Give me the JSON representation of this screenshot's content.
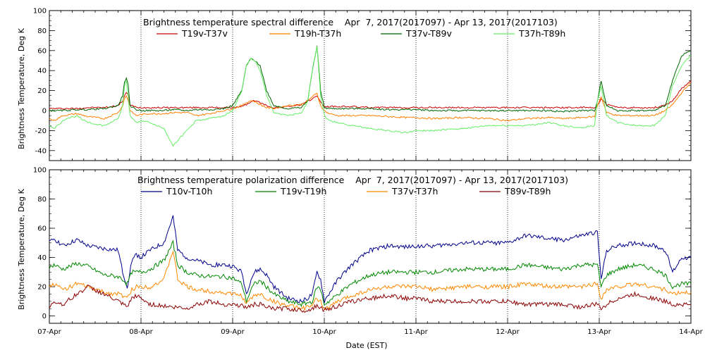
{
  "chart_data": [
    {
      "type": "line",
      "title": "Brightness temperature spectral difference    Apr  7, 2017(2017097) - Apr 13, 2017(2017103)",
      "ylabel": "Brightness Temperature, Deg K",
      "xlabel": "",
      "ylim": [
        -50,
        100
      ],
      "yticks": [
        -40,
        -20,
        0,
        20,
        40,
        60,
        80,
        100
      ],
      "xlim": [
        "07-Apr",
        "14-Apr"
      ],
      "xticks": [],
      "grid": "vertical dotted at day boundaries",
      "legend_position": "top",
      "x_days": [
        0,
        0.05,
        0.15,
        0.3,
        0.42,
        0.6,
        0.75,
        0.8,
        0.82,
        0.84,
        0.86,
        0.88,
        0.95,
        1.0,
        1.1,
        1.25,
        1.35,
        1.5,
        1.6,
        1.75,
        1.9,
        2.0,
        2.1,
        2.15,
        2.2,
        2.24,
        2.3,
        2.37,
        2.45,
        2.6,
        2.75,
        2.82,
        2.87,
        2.92,
        2.96,
        3.0,
        3.05,
        3.15,
        3.3,
        3.5,
        3.7,
        3.9,
        4.0,
        4.2,
        4.5,
        4.8,
        5.0,
        5.2,
        5.45,
        5.6,
        5.8,
        5.95,
        5.98,
        6.02,
        6.08,
        6.2,
        6.4,
        6.6,
        6.72,
        6.8,
        6.9,
        7.0
      ],
      "series": [
        {
          "name": "T19v-T37v",
          "color": "#cc0000",
          "values": [
            2,
            2,
            2,
            2,
            3,
            3,
            5,
            10,
            15,
            18,
            15,
            6,
            3,
            3,
            3,
            3,
            3,
            3,
            3,
            3,
            3,
            3,
            4,
            6,
            9,
            10,
            8,
            5,
            3,
            4,
            6,
            9,
            12,
            15,
            8,
            4,
            4,
            4,
            4,
            3,
            3,
            3,
            3,
            3,
            3,
            3,
            3,
            3,
            3,
            3,
            3,
            3,
            5,
            12,
            6,
            3,
            3,
            3,
            5,
            10,
            22,
            30
          ]
        },
        {
          "name": "T19h-T37h",
          "color": "#ff7f00",
          "values": [
            -8,
            -10,
            -5,
            -3,
            -6,
            -8,
            -2,
            5,
            12,
            15,
            10,
            0,
            -5,
            -4,
            -3,
            -3,
            -2,
            -2,
            -5,
            -3,
            0,
            2,
            5,
            8,
            10,
            9,
            6,
            3,
            2,
            5,
            6,
            10,
            14,
            17,
            5,
            0,
            -3,
            -5,
            -5,
            -5,
            -6,
            -7,
            -7,
            -8,
            -7,
            -8,
            -10,
            -8,
            -7,
            -8,
            -7,
            -6,
            5,
            14,
            -2,
            -5,
            -5,
            -5,
            0,
            6,
            18,
            28
          ]
        },
        {
          "name": "T37v-T89v",
          "color": "#006400",
          "values": [
            0,
            0,
            0,
            1,
            1,
            2,
            5,
            15,
            28,
            33,
            25,
            5,
            1,
            0,
            0,
            0,
            1,
            0,
            1,
            1,
            2,
            5,
            20,
            45,
            52,
            50,
            45,
            20,
            5,
            2,
            3,
            10,
            40,
            65,
            20,
            3,
            2,
            2,
            2,
            2,
            1,
            1,
            1,
            0,
            0,
            0,
            0,
            0,
            0,
            -1,
            0,
            0,
            10,
            30,
            5,
            0,
            0,
            0,
            5,
            30,
            55,
            60
          ]
        },
        {
          "name": "T37h-T89h",
          "color": "#66ee66",
          "values": [
            -15,
            -18,
            -10,
            -5,
            -12,
            -15,
            -8,
            5,
            25,
            30,
            15,
            -5,
            -12,
            -10,
            -12,
            -18,
            -35,
            -20,
            -10,
            -8,
            -5,
            0,
            20,
            45,
            52,
            50,
            40,
            15,
            -2,
            -5,
            -3,
            10,
            40,
            65,
            15,
            -5,
            -10,
            -12,
            -15,
            -18,
            -20,
            -22,
            -20,
            -20,
            -18,
            -15,
            -15,
            -15,
            -12,
            -15,
            -17,
            -15,
            10,
            25,
            -5,
            -12,
            -15,
            -15,
            -5,
            25,
            45,
            55
          ]
        }
      ]
    },
    {
      "type": "line",
      "title": "Brightness temperature polarization difference    Apr  7, 2017(2017097) - Apr 13, 2017(2017103)",
      "ylabel": "Brightness Temperature, Deg K",
      "xlabel": "Date (EST)",
      "ylim": [
        -5,
        100
      ],
      "yticks": [
        0,
        20,
        40,
        60,
        80,
        100
      ],
      "xlim": [
        "07-Apr",
        "14-Apr"
      ],
      "xticks": [
        "07-Apr",
        "08-Apr",
        "09-Apr",
        "10-Apr",
        "11-Apr",
        "12-Apr",
        "13-Apr",
        "14-Apr"
      ],
      "grid": "vertical dotted at day boundaries",
      "legend_position": "top",
      "x_days": [
        0,
        0.05,
        0.15,
        0.3,
        0.42,
        0.6,
        0.75,
        0.8,
        0.85,
        0.9,
        0.95,
        1.0,
        1.1,
        1.25,
        1.35,
        1.4,
        1.5,
        1.6,
        1.75,
        1.9,
        2.0,
        2.1,
        2.15,
        2.2,
        2.24,
        2.3,
        2.37,
        2.45,
        2.6,
        2.75,
        2.82,
        2.87,
        2.92,
        2.96,
        3.0,
        3.05,
        3.15,
        3.3,
        3.5,
        3.7,
        3.9,
        4.0,
        4.2,
        4.5,
        4.8,
        5.0,
        5.2,
        5.45,
        5.6,
        5.8,
        5.95,
        5.98,
        6.02,
        6.08,
        6.2,
        6.4,
        6.6,
        6.72,
        6.8,
        6.9,
        7.0
      ],
      "series": [
        {
          "name": "T10v-T10h",
          "color": "#00008b",
          "values": [
            50,
            53,
            48,
            52,
            48,
            46,
            45,
            30,
            20,
            38,
            42,
            40,
            45,
            50,
            68,
            45,
            40,
            38,
            35,
            35,
            34,
            30,
            15,
            25,
            30,
            32,
            28,
            20,
            12,
            10,
            12,
            15,
            30,
            25,
            10,
            15,
            25,
            35,
            45,
            48,
            47,
            48,
            48,
            50,
            50,
            50,
            55,
            53,
            52,
            55,
            57,
            57,
            25,
            45,
            48,
            50,
            48,
            45,
            30,
            40,
            40
          ]
        },
        {
          "name": "T19v-T19h",
          "color": "#008800",
          "values": [
            33,
            35,
            32,
            36,
            34,
            28,
            27,
            25,
            22,
            30,
            30,
            30,
            32,
            38,
            50,
            35,
            30,
            28,
            27,
            27,
            26,
            22,
            10,
            18,
            22,
            24,
            20,
            15,
            10,
            8,
            9,
            10,
            20,
            18,
            8,
            10,
            15,
            22,
            28,
            30,
            30,
            30,
            30,
            32,
            32,
            32,
            35,
            33,
            32,
            35,
            35,
            35,
            20,
            28,
            32,
            35,
            32,
            28,
            20,
            22,
            22
          ]
        },
        {
          "name": "T37v-T37h",
          "color": "#ff8800",
          "values": [
            20,
            22,
            18,
            22,
            20,
            16,
            15,
            14,
            12,
            18,
            20,
            20,
            20,
            25,
            45,
            25,
            20,
            18,
            17,
            16,
            15,
            14,
            8,
            12,
            14,
            15,
            12,
            10,
            7,
            5,
            6,
            7,
            12,
            10,
            5,
            6,
            10,
            14,
            18,
            20,
            20,
            20,
            18,
            20,
            20,
            20,
            22,
            20,
            20,
            20,
            22,
            22,
            12,
            18,
            20,
            22,
            20,
            18,
            15,
            16,
            16
          ]
        },
        {
          "name": "T89v-T89h",
          "color": "#8b0000",
          "values": [
            5,
            10,
            8,
            15,
            20,
            15,
            10,
            8,
            6,
            12,
            14,
            12,
            8,
            7,
            6,
            6,
            5,
            8,
            10,
            8,
            8,
            7,
            6,
            7,
            8,
            8,
            6,
            5,
            5,
            4,
            4,
            5,
            7,
            6,
            4,
            5,
            7,
            10,
            12,
            14,
            12,
            12,
            10,
            10,
            10,
            10,
            8,
            8,
            8,
            6,
            8,
            8,
            5,
            8,
            12,
            15,
            12,
            10,
            8,
            8,
            8
          ]
        }
      ]
    }
  ]
}
